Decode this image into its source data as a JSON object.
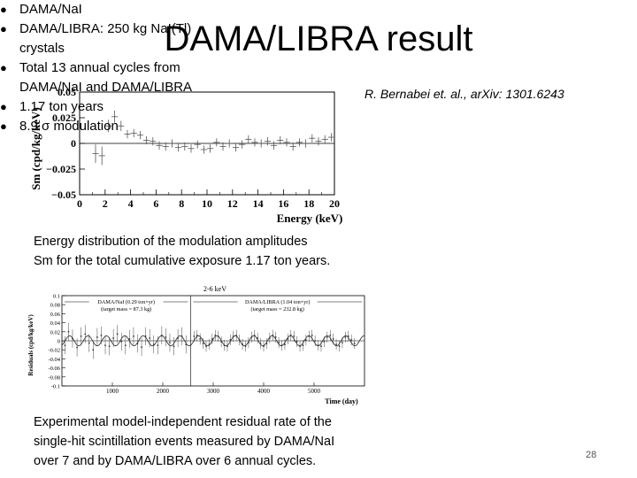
{
  "slide": {
    "title": "DAMA/LIBRA result",
    "citation": "R. Bernabei et. al., arXiv: 1301.6243",
    "bullets": [
      {
        "text": "DAMA/NaI",
        "cont": ""
      },
      {
        "text": "DAMA/LIBRA: 250 kg NaI(Tl)",
        "cont": "crystals"
      },
      {
        "text": "Total 13 annual cycles from",
        "cont": "DAMA/NaI and DAMA/LIBRA"
      },
      {
        "text": "1.17 ton years",
        "cont": ""
      },
      {
        "text": "8.9 σ modulation",
        "cont": ""
      }
    ],
    "caption1": {
      "line1": "Energy distribution of the modulation amplitudes",
      "line2": "Sm for the total cumulative exposure 1.17 ton years."
    },
    "caption2": {
      "line1": "Experimental model-independent residual rate of the",
      "line2": "single-hit scintillation events measured by DAMA/NaI",
      "line3": "over 7 and by DAMA/LIBRA over 6 annual cycles."
    },
    "page_number": "28"
  },
  "chart_data": [
    {
      "type": "scatter",
      "xlabel": "Energy (keV)",
      "ylabel": "Sm (cpd/kg/keV)",
      "xlim": [
        0,
        20
      ],
      "ylim": [
        -0.05,
        0.05
      ],
      "x_ticks": [
        0,
        2,
        4,
        6,
        8,
        10,
        12,
        14,
        16,
        18,
        20
      ],
      "y_ticks": [
        -0.05,
        -0.025,
        0,
        0.025,
        0.05
      ],
      "y_tick_labels": [
        "−0.05",
        "−0.025",
        "0",
        "0.025",
        "0.05"
      ],
      "grid": false,
      "zero_line": true,
      "x": [
        1.25,
        1.75,
        2.25,
        2.75,
        3.25,
        3.75,
        4.25,
        4.75,
        5.25,
        5.75,
        6.25,
        6.75,
        7.25,
        7.75,
        8.25,
        8.75,
        9.25,
        9.75,
        10.25,
        10.75,
        11.25,
        11.75,
        12.25,
        12.75,
        13.25,
        13.75,
        14.25,
        14.75,
        15.25,
        15.75,
        16.25,
        16.75,
        17.25,
        17.75,
        18.25,
        18.75,
        19.25,
        19.75
      ],
      "y": [
        -0.01,
        -0.012,
        0.017,
        0.026,
        0.017,
        0.009,
        0.01,
        0.008,
        0.003,
        0.002,
        -0.002,
        -0.003,
        0.0,
        -0.004,
        -0.003,
        -0.005,
        -0.001,
        -0.006,
        -0.005,
        0.001,
        -0.003,
        0.0,
        -0.004,
        -0.001,
        0.004,
        0.001,
        0.0,
        0.002,
        -0.002,
        0.003,
        0.001,
        -0.003,
        0.001,
        0.0,
        0.005,
        0.002,
        0.004,
        0.006
      ],
      "yerr": [
        0.009,
        0.009,
        0.006,
        0.006,
        0.005,
        0.004,
        0.004,
        0.004,
        0.004,
        0.004,
        0.004,
        0.004,
        0.004,
        0.004,
        0.004,
        0.004,
        0.004,
        0.004,
        0.004,
        0.004,
        0.004,
        0.004,
        0.004,
        0.004,
        0.004,
        0.004,
        0.004,
        0.004,
        0.004,
        0.004,
        0.004,
        0.004,
        0.004,
        0.004,
        0.004,
        0.004,
        0.004,
        0.004
      ]
    },
    {
      "type": "scatter",
      "title": "2-6 keV",
      "xlabel": "Time (day)",
      "ylabel": "Residuals (cpd/kg/keV)",
      "xlim": [
        0,
        6000
      ],
      "ylim": [
        -0.1,
        0.1
      ],
      "x_ticks": [
        1000,
        2000,
        3000,
        4000,
        5000
      ],
      "x_tick_labels": [
        "1000",
        "2000",
        "3000",
        "4000",
        "5000"
      ],
      "y_ticks": [
        -0.1,
        -0.08,
        -0.06,
        -0.04,
        -0.02,
        0,
        0.02,
        0.04,
        0.06,
        0.08,
        0.1
      ],
      "y_tick_labels": [
        "-0.1",
        "-0.08",
        "-0.06",
        "-0.04",
        "-0.02",
        "0",
        "0.02",
        "0.04",
        "0.06",
        "0.08",
        "0.1"
      ],
      "annotations": [
        {
          "text": "DAMA/NaI (0.29 ton×yr)",
          "sub": "(target mass = 87.3 kg)"
        },
        {
          "text": "DAMA/LIBRA (1.04 ton×yr)",
          "sub": "(target mass = 232.8 kg)"
        }
      ],
      "boundary_x": 2550,
      "model": {
        "function": "A cos(2π(t − t0)/T)",
        "amplitude": 0.0112,
        "period": 365,
        "phase": 152
      },
      "series": [
        {
          "x": [
            60,
            130,
            210,
            300,
            380,
            460,
            540,
            620,
            700,
            780,
            860,
            940,
            1020,
            1100,
            1180,
            1260,
            1340,
            1420,
            1500,
            1580,
            1660,
            1740,
            1820,
            1900,
            1980,
            2060,
            2140,
            2220,
            2300,
            2380,
            2460
          ],
          "y": [
            -0.01,
            0.02,
            0.005,
            -0.015,
            0.01,
            0.015,
            -0.005,
            -0.02,
            0.008,
            0.012,
            -0.01,
            -0.012,
            0.006,
            0.015,
            -0.002,
            -0.01,
            0.004,
            0.01,
            -0.006,
            -0.014,
            0.01,
            0.006,
            -0.008,
            -0.01,
            0.012,
            0.008,
            -0.004,
            -0.012,
            0.006,
            0.01,
            -0.008
          ],
          "yerr": [
            0.02,
            0.02,
            0.02,
            0.02,
            0.02,
            0.02,
            0.02,
            0.02,
            0.02,
            0.02,
            0.02,
            0.02,
            0.02,
            0.02,
            0.02,
            0.02,
            0.02,
            0.02,
            0.02,
            0.02,
            0.02,
            0.02,
            0.02,
            0.02,
            0.02,
            0.02,
            0.02,
            0.02,
            0.02,
            0.02,
            0.02
          ]
        },
        {
          "x": [
            2620,
            2680,
            2740,
            2800,
            2860,
            2920,
            2980,
            3040,
            3100,
            3160,
            3220,
            3280,
            3340,
            3400,
            3460,
            3520,
            3580,
            3640,
            3700,
            3760,
            3820,
            3880,
            3940,
            4000,
            4060,
            4120,
            4180,
            4240,
            4300,
            4360,
            4420,
            4480,
            4540,
            4600,
            4660,
            4720,
            4780,
            4840,
            4900,
            4960,
            5020,
            5080,
            5140,
            5200,
            5260,
            5320,
            5380,
            5440,
            5500,
            5560,
            5620,
            5680,
            5740,
            5800
          ],
          "y": [
            0.01,
            0.012,
            0.004,
            -0.006,
            -0.012,
            -0.008,
            0.004,
            0.012,
            0.01,
            -0.002,
            -0.01,
            -0.012,
            0.002,
            0.01,
            0.012,
            0.002,
            -0.008,
            -0.012,
            -0.004,
            0.008,
            0.012,
            0.006,
            -0.006,
            -0.012,
            -0.006,
            0.006,
            0.012,
            0.008,
            -0.004,
            -0.01,
            -0.008,
            0.004,
            0.012,
            0.01,
            -0.002,
            -0.012,
            -0.01,
            0.002,
            0.01,
            0.012,
            0.0,
            -0.01,
            -0.012,
            -0.002,
            0.008,
            0.012,
            0.004,
            -0.008,
            -0.012,
            -0.004,
            0.008,
            0.01,
            0.002,
            -0.006
          ],
          "yerr": [
            0.012,
            0.012,
            0.012,
            0.012,
            0.012,
            0.012,
            0.012,
            0.012,
            0.012,
            0.012,
            0.012,
            0.012,
            0.012,
            0.012,
            0.012,
            0.012,
            0.012,
            0.012,
            0.012,
            0.012,
            0.012,
            0.012,
            0.012,
            0.012,
            0.012,
            0.012,
            0.012,
            0.012,
            0.012,
            0.012,
            0.012,
            0.012,
            0.012,
            0.012,
            0.012,
            0.012,
            0.012,
            0.012,
            0.012,
            0.012,
            0.012,
            0.012,
            0.012,
            0.012,
            0.012,
            0.012,
            0.012,
            0.012,
            0.012,
            0.012,
            0.012,
            0.012,
            0.012,
            0.012
          ]
        }
      ]
    }
  ]
}
